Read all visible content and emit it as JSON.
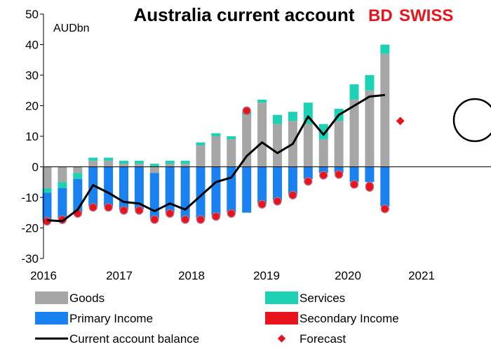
{
  "chart_data": {
    "type": "bar",
    "title": "Australia current account",
    "ylabel": "AUDbn",
    "ylim": [
      -30,
      50
    ],
    "yticks": [
      -30,
      -20,
      -10,
      0,
      10,
      20,
      30,
      40,
      50
    ],
    "xticks": [
      "2016",
      "2017",
      "2018",
      "2019",
      "2020",
      "2021"
    ],
    "x": [
      "2016Q1",
      "2016Q2",
      "2016Q3",
      "2016Q4",
      "2017Q1",
      "2017Q2",
      "2017Q3",
      "2017Q4",
      "2018Q1",
      "2018Q2",
      "2018Q3",
      "2018Q4",
      "2019Q1",
      "2019Q2",
      "2019Q3",
      "2019Q4",
      "2020Q1",
      "2020Q2",
      "2020Q3",
      "2020Q4",
      "2021Q1",
      "2021Q2",
      "2021Q3"
    ],
    "grid": false,
    "legend_position": "bottom",
    "series": [
      {
        "name": "Goods",
        "color": "#a6a6a6",
        "values": [
          -7,
          -5,
          -2,
          2,
          2,
          1,
          1,
          -2,
          1,
          1,
          7,
          10,
          9,
          17,
          21,
          14,
          15,
          14,
          9,
          15,
          22,
          25,
          37
        ]
      },
      {
        "name": "Services",
        "color": "#1dd1b5",
        "values": [
          -1.5,
          -2,
          -2,
          1,
          1,
          1,
          1,
          1,
          1,
          1,
          1,
          1,
          1,
          1,
          1,
          3,
          3,
          7,
          5,
          4,
          5,
          5,
          3
        ]
      },
      {
        "name": "Primary Income",
        "color": "#1a82f0",
        "values": [
          -9,
          -10,
          -11,
          -13,
          -13,
          -14,
          -14,
          -15,
          -15,
          -17,
          -17,
          -16,
          -15,
          -15,
          -12,
          -11,
          -9,
          -4,
          -2,
          -2,
          -5,
          -5,
          -13
        ]
      },
      {
        "name": "Secondary Income",
        "color": "#e8141d",
        "values": [
          -0.6,
          -0.6,
          -0.5,
          -0.5,
          -0.5,
          -0.5,
          -0.5,
          -0.5,
          -0.5,
          -0.5,
          -0.5,
          -0.5,
          -0.5,
          0.7,
          -0.5,
          -0.5,
          -0.5,
          -1.5,
          -1.5,
          -1,
          -1.5,
          -3,
          -1.5
        ]
      }
    ],
    "line": {
      "name": "Current account balance",
      "color": "#000000",
      "values": [
        -17.5,
        -17.8,
        -14,
        -6,
        -8.5,
        -11.5,
        -12,
        -14.5,
        -12,
        -14,
        -9.5,
        -5,
        -3.5,
        3.5,
        8,
        4.5,
        7.5,
        16.5,
        10.5,
        17,
        20,
        23,
        23.5
      ]
    },
    "forecast": {
      "name": "Forecast",
      "color": "#e8141d",
      "x": "2021Q4",
      "value": 15
    }
  },
  "brand": {
    "part1": "BD",
    "part2": "SWISS",
    "color": "#e8141d"
  }
}
